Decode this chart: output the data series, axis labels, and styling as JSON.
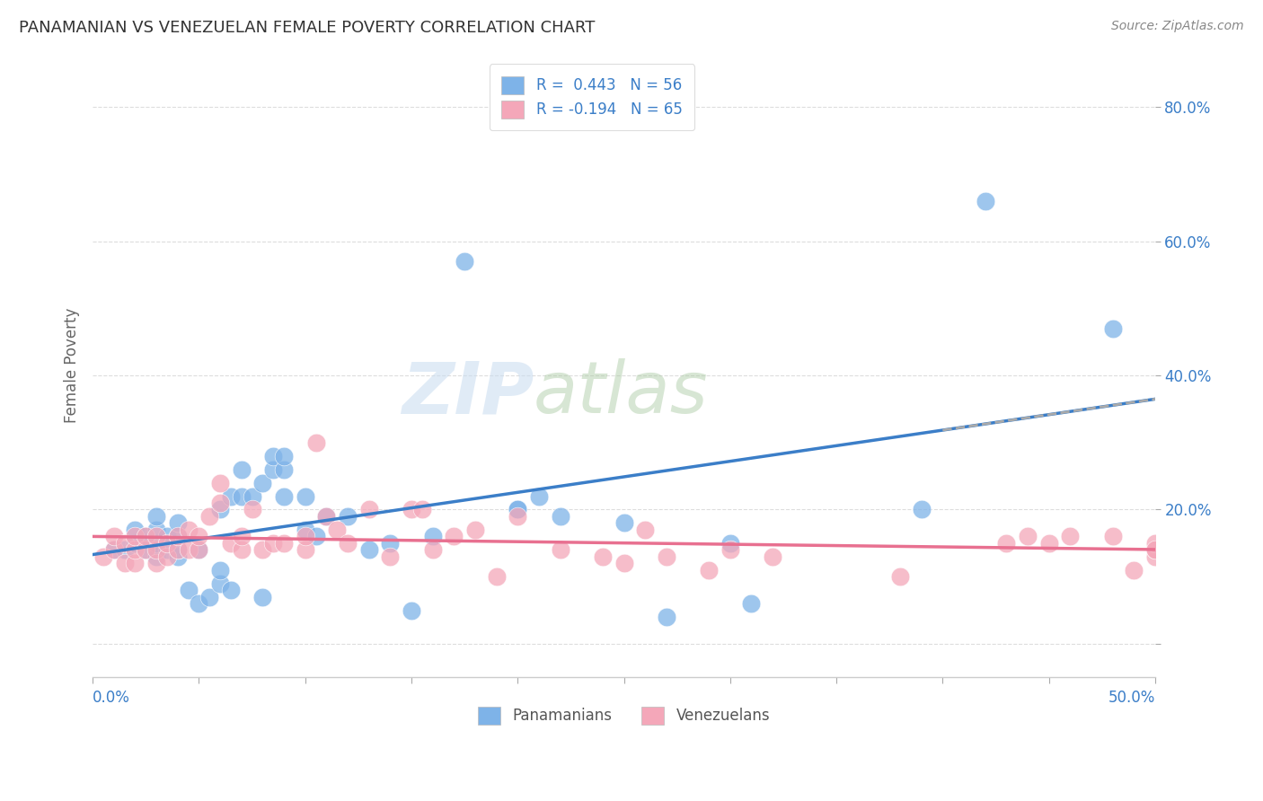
{
  "title": "PANAMANIAN VS VENEZUELAN FEMALE POVERTY CORRELATION CHART",
  "source": "Source: ZipAtlas.com",
  "ylabel": "Female Poverty",
  "yticks": [
    0.0,
    0.2,
    0.4,
    0.6,
    0.8
  ],
  "xlim": [
    0.0,
    0.5
  ],
  "ylim": [
    -0.05,
    0.88
  ],
  "legend_r1": "R =  0.443   N = 56",
  "legend_r2": "R = -0.194   N = 65",
  "blue_color": "#7EB3E8",
  "pink_color": "#F4A7B9",
  "blue_line_color": "#3B7EC8",
  "pink_line_color": "#E87090",
  "dashed_line_color": "#AAAAAA",
  "watermark_zip": "ZIP",
  "watermark_atlas": "atlas",
  "panamanian_x": [
    0.01,
    0.015,
    0.02,
    0.02,
    0.025,
    0.025,
    0.03,
    0.03,
    0.03,
    0.03,
    0.035,
    0.035,
    0.04,
    0.04,
    0.04,
    0.04,
    0.045,
    0.05,
    0.05,
    0.055,
    0.06,
    0.06,
    0.06,
    0.065,
    0.065,
    0.07,
    0.07,
    0.075,
    0.08,
    0.08,
    0.085,
    0.085,
    0.09,
    0.09,
    0.09,
    0.1,
    0.1,
    0.105,
    0.11,
    0.12,
    0.13,
    0.14,
    0.15,
    0.16,
    0.175,
    0.2,
    0.2,
    0.21,
    0.22,
    0.25,
    0.27,
    0.3,
    0.31,
    0.39,
    0.42,
    0.48
  ],
  "panamanian_y": [
    0.14,
    0.14,
    0.15,
    0.17,
    0.14,
    0.16,
    0.13,
    0.15,
    0.17,
    0.19,
    0.14,
    0.16,
    0.13,
    0.14,
    0.16,
    0.18,
    0.08,
    0.06,
    0.14,
    0.07,
    0.09,
    0.11,
    0.2,
    0.08,
    0.22,
    0.22,
    0.26,
    0.22,
    0.07,
    0.24,
    0.26,
    0.28,
    0.22,
    0.26,
    0.28,
    0.17,
    0.22,
    0.16,
    0.19,
    0.19,
    0.14,
    0.15,
    0.05,
    0.16,
    0.57,
    0.2,
    0.2,
    0.22,
    0.19,
    0.18,
    0.04,
    0.15,
    0.06,
    0.2,
    0.66,
    0.47
  ],
  "venezuelan_x": [
    0.005,
    0.01,
    0.01,
    0.015,
    0.015,
    0.02,
    0.02,
    0.02,
    0.025,
    0.025,
    0.03,
    0.03,
    0.03,
    0.035,
    0.035,
    0.04,
    0.04,
    0.045,
    0.045,
    0.05,
    0.05,
    0.055,
    0.06,
    0.06,
    0.065,
    0.07,
    0.07,
    0.075,
    0.08,
    0.085,
    0.09,
    0.1,
    0.1,
    0.105,
    0.11,
    0.115,
    0.12,
    0.13,
    0.14,
    0.15,
    0.155,
    0.16,
    0.17,
    0.18,
    0.19,
    0.2,
    0.22,
    0.24,
    0.25,
    0.26,
    0.27,
    0.29,
    0.3,
    0.32,
    0.38,
    0.43,
    0.44,
    0.45,
    0.46,
    0.48,
    0.49,
    0.5,
    0.5,
    0.5,
    0.5
  ],
  "venezuelan_y": [
    0.13,
    0.14,
    0.16,
    0.12,
    0.15,
    0.12,
    0.14,
    0.16,
    0.14,
    0.16,
    0.12,
    0.14,
    0.16,
    0.13,
    0.15,
    0.14,
    0.16,
    0.14,
    0.17,
    0.14,
    0.16,
    0.19,
    0.21,
    0.24,
    0.15,
    0.14,
    0.16,
    0.2,
    0.14,
    0.15,
    0.15,
    0.14,
    0.16,
    0.3,
    0.19,
    0.17,
    0.15,
    0.2,
    0.13,
    0.2,
    0.2,
    0.14,
    0.16,
    0.17,
    0.1,
    0.19,
    0.14,
    0.13,
    0.12,
    0.17,
    0.13,
    0.11,
    0.14,
    0.13,
    0.1,
    0.15,
    0.16,
    0.15,
    0.16,
    0.16,
    0.11,
    0.13,
    0.14,
    0.15,
    0.14
  ]
}
